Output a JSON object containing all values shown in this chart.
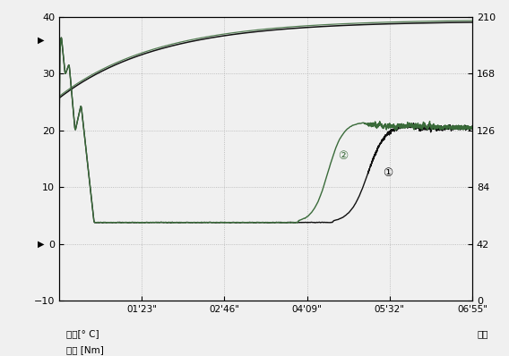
{
  "x_ticks_labels": [
    "01'23\"",
    "02'46\"",
    "04'09\"",
    "05'32\"",
    "06'55\""
  ],
  "left_yticks": [
    -10,
    0,
    10,
    20,
    30,
    40
  ],
  "right_yticks": [
    0,
    42,
    84,
    126,
    168,
    210
  ],
  "ylim_left": [
    -10,
    40
  ],
  "ylim_right": [
    0,
    210
  ],
  "xlim": [
    0,
    415
  ],
  "x_tick_positions": [
    83,
    166,
    249,
    332,
    415
  ],
  "bg_color": "#ffffff",
  "line_black": "#111111",
  "line_green": "#3a6b3a",
  "annotation1": "①",
  "annotation2": "②",
  "ann1_x": 330,
  "ann1_y": 12,
  "ann2_x": 285,
  "ann2_y": 15,
  "xlabel_left1": "料温[° C]",
  "xlabel_left2": "扔矩 [Nm]",
  "xlabel_right": "时间",
  "dotgrid_color": "#aaaaaa"
}
